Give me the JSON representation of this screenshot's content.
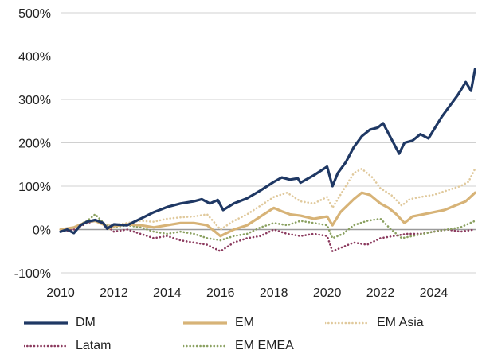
{
  "chart_data": {
    "type": "line",
    "title": "",
    "xlabel": "",
    "ylabel": "",
    "xlim": [
      2010,
      2025.6
    ],
    "ylim": [
      -100,
      500
    ],
    "grid": "horizontal",
    "legend_position": "bottom",
    "x_ticks": [
      2010,
      2012,
      2014,
      2016,
      2018,
      2020,
      2022,
      2024
    ],
    "x_tick_labels": [
      "2010",
      "2012",
      "2014",
      "2016",
      "2018",
      "2020",
      "2022",
      "2024"
    ],
    "y_ticks": [
      -100,
      0,
      100,
      200,
      300,
      400,
      500
    ],
    "y_tick_labels": [
      "-100%",
      "0%",
      "100%",
      "200%",
      "300%",
      "400%",
      "500%"
    ],
    "series": [
      {
        "name": "DM",
        "color": "#1f3864",
        "style": "solid",
        "x": [
          2010,
          2010.25,
          2010.5,
          2010.75,
          2011,
          2011.3,
          2011.6,
          2011.75,
          2012,
          2012.5,
          2013,
          2013.5,
          2014,
          2014.5,
          2015,
          2015.3,
          2015.6,
          2015.9,
          2016.1,
          2016.5,
          2017,
          2017.5,
          2018,
          2018.3,
          2018.6,
          2018.9,
          2019,
          2019.5,
          2020,
          2020.2,
          2020.4,
          2020.7,
          2021,
          2021.3,
          2021.6,
          2021.9,
          2022.1,
          2022.4,
          2022.7,
          2022.9,
          2023.2,
          2023.5,
          2023.8,
          2024,
          2024.3,
          2024.6,
          2024.9,
          2025.2,
          2025.4,
          2025.55
        ],
        "y": [
          -5,
          0,
          -8,
          10,
          18,
          22,
          15,
          2,
          12,
          10,
          25,
          40,
          52,
          60,
          65,
          70,
          60,
          68,
          45,
          60,
          72,
          90,
          110,
          120,
          115,
          118,
          108,
          125,
          145,
          100,
          130,
          155,
          190,
          215,
          230,
          235,
          245,
          210,
          175,
          200,
          205,
          220,
          210,
          230,
          260,
          285,
          310,
          340,
          320,
          370
        ]
      },
      {
        "name": "EM",
        "color": "#d7b377",
        "style": "solid",
        "x": [
          2010,
          2010.5,
          2011,
          2011.3,
          2011.6,
          2011.8,
          2012,
          2012.5,
          2013,
          2013.5,
          2014,
          2014.5,
          2015,
          2015.5,
          2016,
          2016.5,
          2017,
          2017.5,
          2018,
          2018.3,
          2018.6,
          2019,
          2019.5,
          2020,
          2020.2,
          2020.5,
          2021,
          2021.3,
          2021.6,
          2022,
          2022.3,
          2022.6,
          2022.9,
          2023.2,
          2023.6,
          2024,
          2024.4,
          2024.8,
          2025.2,
          2025.55
        ],
        "y": [
          0,
          5,
          18,
          20,
          12,
          2,
          8,
          12,
          10,
          5,
          10,
          15,
          15,
          10,
          -15,
          0,
          10,
          30,
          50,
          42,
          35,
          32,
          25,
          30,
          10,
          40,
          70,
          85,
          80,
          60,
          50,
          35,
          15,
          30,
          35,
          40,
          45,
          55,
          65,
          85
        ]
      },
      {
        "name": "EM Asia",
        "color": "#e0c99c",
        "style": "dotted",
        "x": [
          2010,
          2010.5,
          2011,
          2011.3,
          2011.6,
          2012,
          2012.5,
          2013,
          2013.5,
          2014,
          2014.5,
          2015,
          2015.5,
          2016,
          2016.5,
          2017,
          2017.5,
          2018,
          2018.5,
          2019,
          2019.5,
          2020,
          2020.2,
          2020.6,
          2021,
          2021.3,
          2021.7,
          2022,
          2022.4,
          2022.8,
          2023.1,
          2023.5,
          2024,
          2024.5,
          2025,
          2025.3,
          2025.55
        ],
        "y": [
          0,
          5,
          18,
          22,
          12,
          10,
          15,
          20,
          18,
          25,
          28,
          30,
          35,
          0,
          20,
          35,
          55,
          75,
          85,
          65,
          60,
          75,
          50,
          90,
          130,
          140,
          120,
          95,
          80,
          55,
          70,
          75,
          80,
          90,
          100,
          110,
          140
        ]
      },
      {
        "name": "Latam",
        "color": "#8b3a5e",
        "style": "dotted",
        "x": [
          2010,
          2010.5,
          2011,
          2011.3,
          2011.7,
          2012,
          2012.5,
          2013,
          2013.5,
          2014,
          2014.5,
          2015,
          2015.5,
          2016,
          2016.5,
          2017,
          2017.5,
          2018,
          2018.5,
          2019,
          2019.5,
          2020,
          2020.2,
          2020.6,
          2021,
          2021.5,
          2022,
          2022.5,
          2023,
          2023.5,
          2024,
          2024.5,
          2025,
          2025.55
        ],
        "y": [
          -5,
          0,
          15,
          20,
          10,
          -5,
          0,
          -10,
          -20,
          -15,
          -25,
          -30,
          -35,
          -50,
          -30,
          -20,
          -15,
          0,
          -10,
          -15,
          -10,
          -15,
          -50,
          -40,
          -30,
          -35,
          -20,
          -15,
          -10,
          -10,
          -5,
          0,
          -5,
          0
        ]
      },
      {
        "name": "EM EMEA",
        "color": "#8aa060",
        "style": "dotted",
        "x": [
          2010,
          2010.5,
          2011,
          2011.3,
          2011.7,
          2012,
          2012.5,
          2013,
          2013.5,
          2014,
          2014.5,
          2015,
          2015.5,
          2016,
          2016.5,
          2017,
          2017.5,
          2018,
          2018.5,
          2019,
          2019.5,
          2020,
          2020.2,
          2020.6,
          2021,
          2021.5,
          2022,
          2022.4,
          2022.8,
          2023.2,
          2023.6,
          2024,
          2024.5,
          2025,
          2025.55
        ],
        "y": [
          0,
          5,
          20,
          35,
          10,
          5,
          10,
          5,
          -5,
          -10,
          -5,
          -10,
          -20,
          -25,
          -15,
          -10,
          5,
          15,
          10,
          20,
          15,
          10,
          -20,
          -10,
          10,
          20,
          25,
          0,
          -20,
          -15,
          -10,
          -5,
          0,
          5,
          20
        ]
      }
    ]
  }
}
